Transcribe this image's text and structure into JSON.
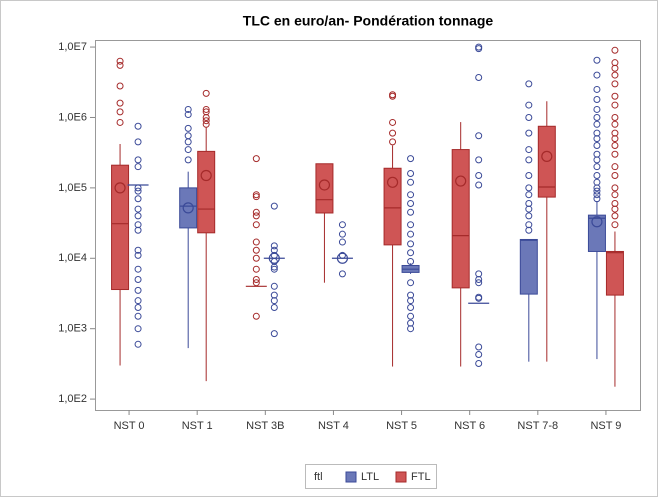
{
  "chart_data": {
    "type": "box",
    "title": "TLC en euro/an- Pondération tonnage",
    "categories": [
      "NST 0",
      "NST 1",
      "NST 3B",
      "NST 4",
      "NST 5",
      "NST 6",
      "NST 7-8",
      "NST 9"
    ],
    "log_scale": true,
    "ylim": [
      70,
      12600000
    ],
    "yticks": [
      {
        "value": 100,
        "label": "1,0E2"
      },
      {
        "value": 1000,
        "label": "1,0E3"
      },
      {
        "value": 10000,
        "label": "1,0E4"
      },
      {
        "value": 100000,
        "label": "1,0E5"
      },
      {
        "value": 1000000,
        "label": "1,0E6"
      },
      {
        "value": 10000000,
        "label": "1,0E7"
      }
    ],
    "legend_title": "ftl",
    "legend_position": "bottom",
    "series": [
      {
        "name": "LTL",
        "color": "#6b78b8",
        "edge": "#3b4a98"
      },
      {
        "name": "FTL",
        "color": "#cf5555",
        "edge": "#a52a2a"
      }
    ],
    "boxes": [
      {
        "category": 0,
        "group": 1,
        "whisker_low": 300,
        "q1": 3600,
        "median": 31000,
        "q3": 210000,
        "whisker_high": 420000,
        "mean": 100000,
        "outliers": [
          6300000,
          5500000,
          2800000,
          1600000,
          1200000,
          850000
        ]
      },
      {
        "category": 0,
        "group": 0,
        "whisker_low": 110000,
        "q1": 110000,
        "median": 110000,
        "q3": 110000,
        "whisker_high": 110000,
        "outliers": [
          750000,
          450000,
          250000,
          200000,
          100000,
          90000,
          70000,
          50000,
          40000,
          30000,
          25000,
          13000,
          11000,
          7000,
          5000,
          3500,
          2500,
          2000,
          1500,
          1000,
          600
        ]
      },
      {
        "category": 1,
        "group": 0,
        "whisker_low": 530,
        "q1": 27000,
        "median": 55000,
        "q3": 100000,
        "whisker_high": 170000,
        "mean": 52000,
        "outliers": [
          1300000,
          1100000,
          700000,
          550000,
          450000,
          350000,
          250000
        ]
      },
      {
        "category": 1,
        "group": 1,
        "whisker_low": 180,
        "q1": 23000,
        "median": 50000,
        "q3": 330000,
        "whisker_high": 720000,
        "mean": 150000,
        "outliers": [
          2200000,
          1300000,
          1200000,
          1000000,
          900000,
          800000
        ]
      },
      {
        "category": 2,
        "group": 1,
        "whisker_low": 4000,
        "q1": 4000,
        "median": 4000,
        "q3": 4000,
        "whisker_high": 4000,
        "outliers": [
          260000,
          80000,
          75000,
          45000,
          40000,
          30000,
          17000,
          13000,
          10000,
          7000,
          5000,
          4500,
          1500
        ]
      },
      {
        "category": 2,
        "group": 0,
        "whisker_low": 10000,
        "q1": 10000,
        "median": 10000,
        "q3": 10000,
        "whisker_high": 10000,
        "mean": 10000,
        "outliers": [
          55000,
          15000,
          13000,
          11000,
          9000,
          7500,
          7000,
          4000,
          3000,
          2500,
          2000,
          850
        ]
      },
      {
        "category": 3,
        "group": 1,
        "whisker_low": 4500,
        "q1": 44000,
        "median": 68000,
        "q3": 220000,
        "whisker_high": 220000,
        "mean": 110000,
        "outliers": []
      },
      {
        "category": 3,
        "group": 0,
        "whisker_low": 10000,
        "q1": 10000,
        "median": 10000,
        "q3": 10000,
        "whisker_high": 10000,
        "mean": 10000,
        "outliers": [
          30000,
          22000,
          17000,
          11000,
          6000
        ]
      },
      {
        "category": 4,
        "group": 1,
        "whisker_low": 290,
        "q1": 15500,
        "median": 52000,
        "q3": 190000,
        "whisker_high": 400000,
        "mean": 120000,
        "outliers": [
          2100000,
          2000000,
          850000,
          600000,
          450000
        ]
      },
      {
        "category": 4,
        "group": 0,
        "whisker_low": 6000,
        "q1": 6300,
        "median": 7000,
        "q3": 7900,
        "whisker_high": 8500,
        "outliers": [
          260000,
          160000,
          120000,
          80000,
          60000,
          45000,
          30000,
          22000,
          16000,
          12000,
          9000,
          4500,
          3000,
          2500,
          2000,
          1500,
          1200,
          1000
        ]
      },
      {
        "category": 5,
        "group": 1,
        "whisker_low": 290,
        "q1": 3800,
        "median": 21000,
        "q3": 350000,
        "whisker_high": 860000,
        "mean": 125000,
        "outliers": []
      },
      {
        "category": 5,
        "group": 0,
        "whisker_low": 2300,
        "q1": 2300,
        "median": 2300,
        "q3": 2300,
        "whisker_high": 2300,
        "outliers": [
          10000000,
          9500000,
          3700000,
          550000,
          250000,
          150000,
          110000,
          6000,
          5000,
          4500,
          2800,
          2700,
          550,
          430,
          320
        ]
      },
      {
        "category": 6,
        "group": 0,
        "whisker_low": 340,
        "q1": 3100,
        "median": 18000,
        "q3": 18500,
        "whisker_high": 18500,
        "outliers": [
          3000000,
          1500000,
          1000000,
          600000,
          350000,
          250000,
          150000,
          100000,
          80000,
          60000,
          50000,
          40000,
          30000,
          25000
        ]
      },
      {
        "category": 6,
        "group": 1,
        "whisker_low": 340,
        "q1": 74000,
        "median": 103000,
        "q3": 750000,
        "whisker_high": 1700000,
        "mean": 280000,
        "outliers": []
      },
      {
        "category": 7,
        "group": 0,
        "whisker_low": 370,
        "q1": 12500,
        "median": 37000,
        "q3": 41000,
        "whisker_high": 65000,
        "mean": 33000,
        "outliers": [
          6500000,
          4000000,
          2500000,
          1800000,
          1300000,
          1000000,
          800000,
          600000,
          500000,
          400000,
          300000,
          250000,
          200000,
          150000,
          120000,
          100000,
          90000,
          80000,
          70000
        ]
      },
      {
        "category": 7,
        "group": 1,
        "whisker_low": 150,
        "q1": 3000,
        "median": 12000,
        "q3": 12500,
        "whisker_high": 24000,
        "outliers": [
          9000000,
          6000000,
          5000000,
          4000000,
          3000000,
          2000000,
          1500000,
          1000000,
          800000,
          600000,
          500000,
          400000,
          300000,
          200000,
          150000,
          100000,
          80000,
          60000,
          50000,
          40000,
          30000
        ]
      }
    ]
  }
}
